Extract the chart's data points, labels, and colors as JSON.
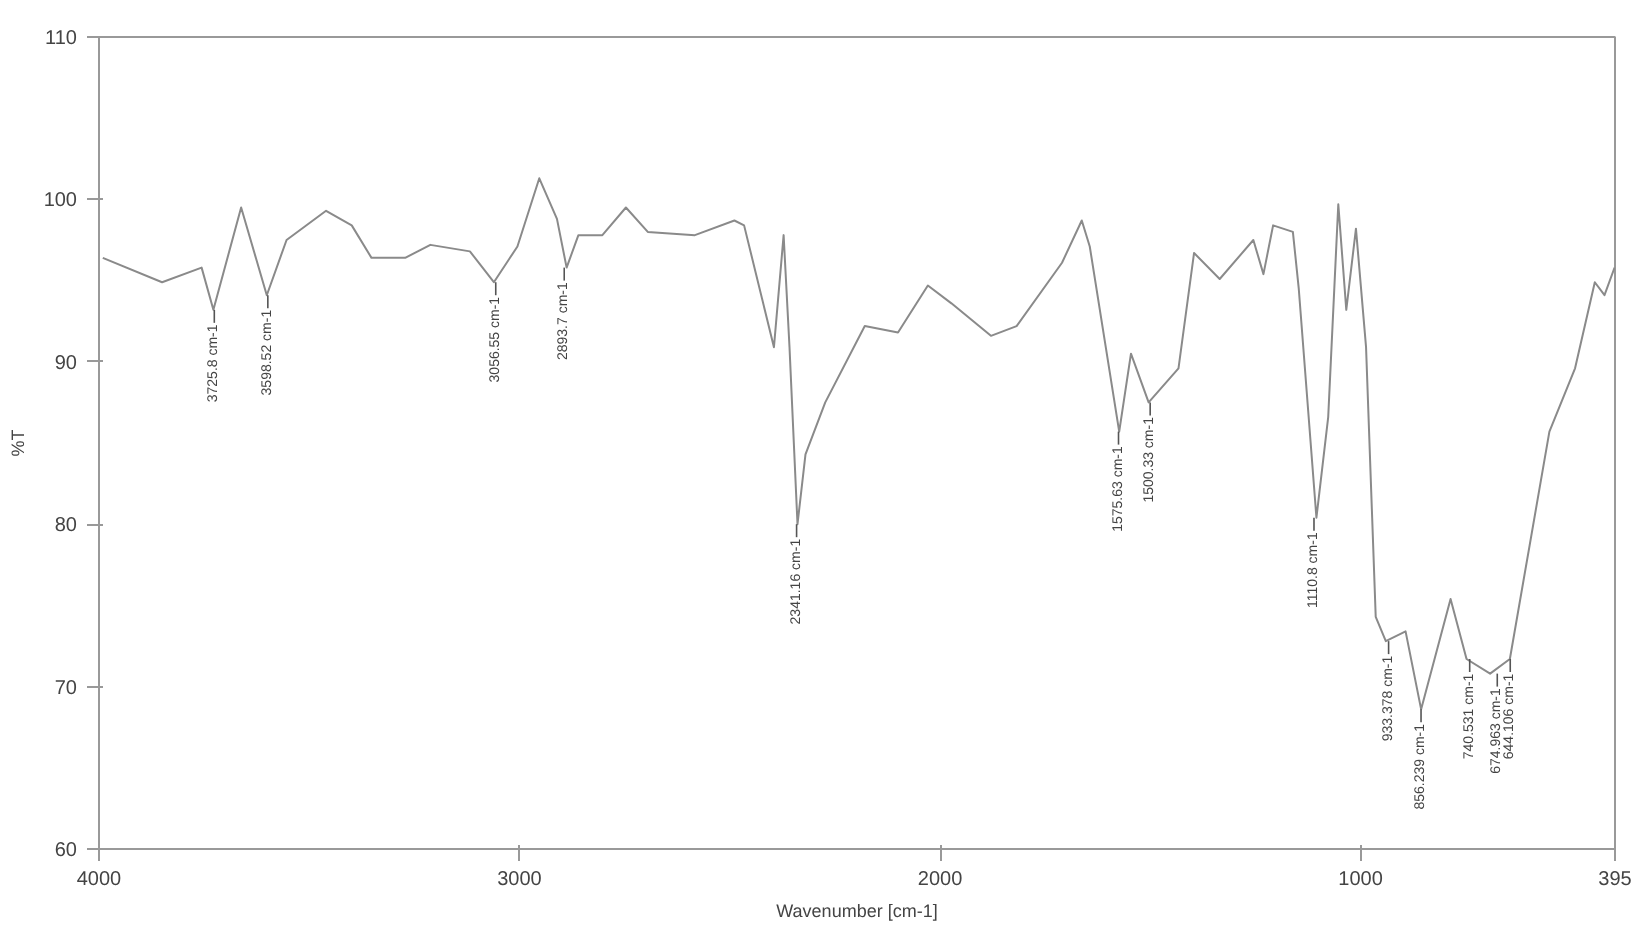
{
  "chart_data": {
    "type": "line",
    "xlabel": "Wavenumber [cm-1]",
    "ylabel": "%T",
    "xlim": [
      4000,
      395
    ],
    "ylim": [
      60,
      110
    ],
    "xticks": [
      4000,
      3000,
      2000,
      1000,
      395
    ],
    "yticks": [
      60,
      70,
      80,
      90,
      100,
      110
    ],
    "grid": false,
    "marker": "none",
    "line_style": "solid",
    "x": [
      3991,
      3850,
      3756,
      3728,
      3662,
      3601,
      3554,
      3460,
      3399,
      3352,
      3272,
      3212,
      3118,
      3061,
      3005,
      2953,
      2911,
      2888,
      2860,
      2803,
      2747,
      2695,
      2583,
      2489,
      2466,
      2395,
      2372,
      2358,
      2339,
      2320,
      2273,
      2179,
      2100,
      2029,
      1973,
      1879,
      1818,
      1710,
      1663,
      1644,
      1574,
      1546,
      1504,
      1433,
      1396,
      1335,
      1255,
      1231,
      1208,
      1161,
      1147,
      1105,
      1077,
      1053,
      1034,
      1011,
      987,
      964,
      940,
      893,
      856,
      786,
      748,
      692,
      645,
      598,
      551,
      490,
      443,
      420,
      396
    ],
    "series": [
      {
        "color": "#8a8a8a",
        "values": [
          96.4,
          94.9,
          95.8,
          93.2,
          99.5,
          94.1,
          97.5,
          99.3,
          98.4,
          96.4,
          96.4,
          97.2,
          96.8,
          94.9,
          97.1,
          101.3,
          98.8,
          95.8,
          97.8,
          97.8,
          99.5,
          98.0,
          97.8,
          98.7,
          98.4,
          90.9,
          97.8,
          90.9,
          80.0,
          84.3,
          87.5,
          92.2,
          91.8,
          94.7,
          93.6,
          91.6,
          92.2,
          96.1,
          98.7,
          97.1,
          85.7,
          90.5,
          87.5,
          89.6,
          96.7,
          95.1,
          97.5,
          95.4,
          98.4,
          98.0,
          94.5,
          80.4,
          86.6,
          99.7,
          93.2,
          98.2,
          90.9,
          74.3,
          72.8,
          73.4,
          68.6,
          75.4,
          71.7,
          70.8,
          71.7,
          78.7,
          85.7,
          89.6,
          94.9,
          94.1,
          95.8
        ]
      }
    ],
    "annotations": [
      {
        "text": "3725.8 cm-1",
        "x": 3725.8,
        "y": 93.2
      },
      {
        "text": "3598.52 cm-1",
        "x": 3598.52,
        "y": 94.1
      },
      {
        "text": "3056.55 cm-1",
        "x": 3056.55,
        "y": 94.9
      },
      {
        "text": "2893.7 cm-1",
        "x": 2893.7,
        "y": 95.8
      },
      {
        "text": "2341.16 cm-1",
        "x": 2341.16,
        "y": 80.0
      },
      {
        "text": "1575.63 cm-1",
        "x": 1575.63,
        "y": 85.7
      },
      {
        "text": "1500.33 cm-1",
        "x": 1500.33,
        "y": 87.5
      },
      {
        "text": "1110.8 cm-1",
        "x": 1110.8,
        "y": 80.4
      },
      {
        "text": "933.378 cm-1",
        "x": 933.378,
        "y": 72.8
      },
      {
        "text": "856.239 cm-1",
        "x": 856.239,
        "y": 68.6
      },
      {
        "text": "740.531 cm-1",
        "x": 740.531,
        "y": 71.7
      },
      {
        "text": "674.963 cm-1",
        "x": 674.963,
        "y": 70.8
      },
      {
        "text": "644.106 cm-1",
        "x": 644.106,
        "y": 71.7
      }
    ]
  }
}
